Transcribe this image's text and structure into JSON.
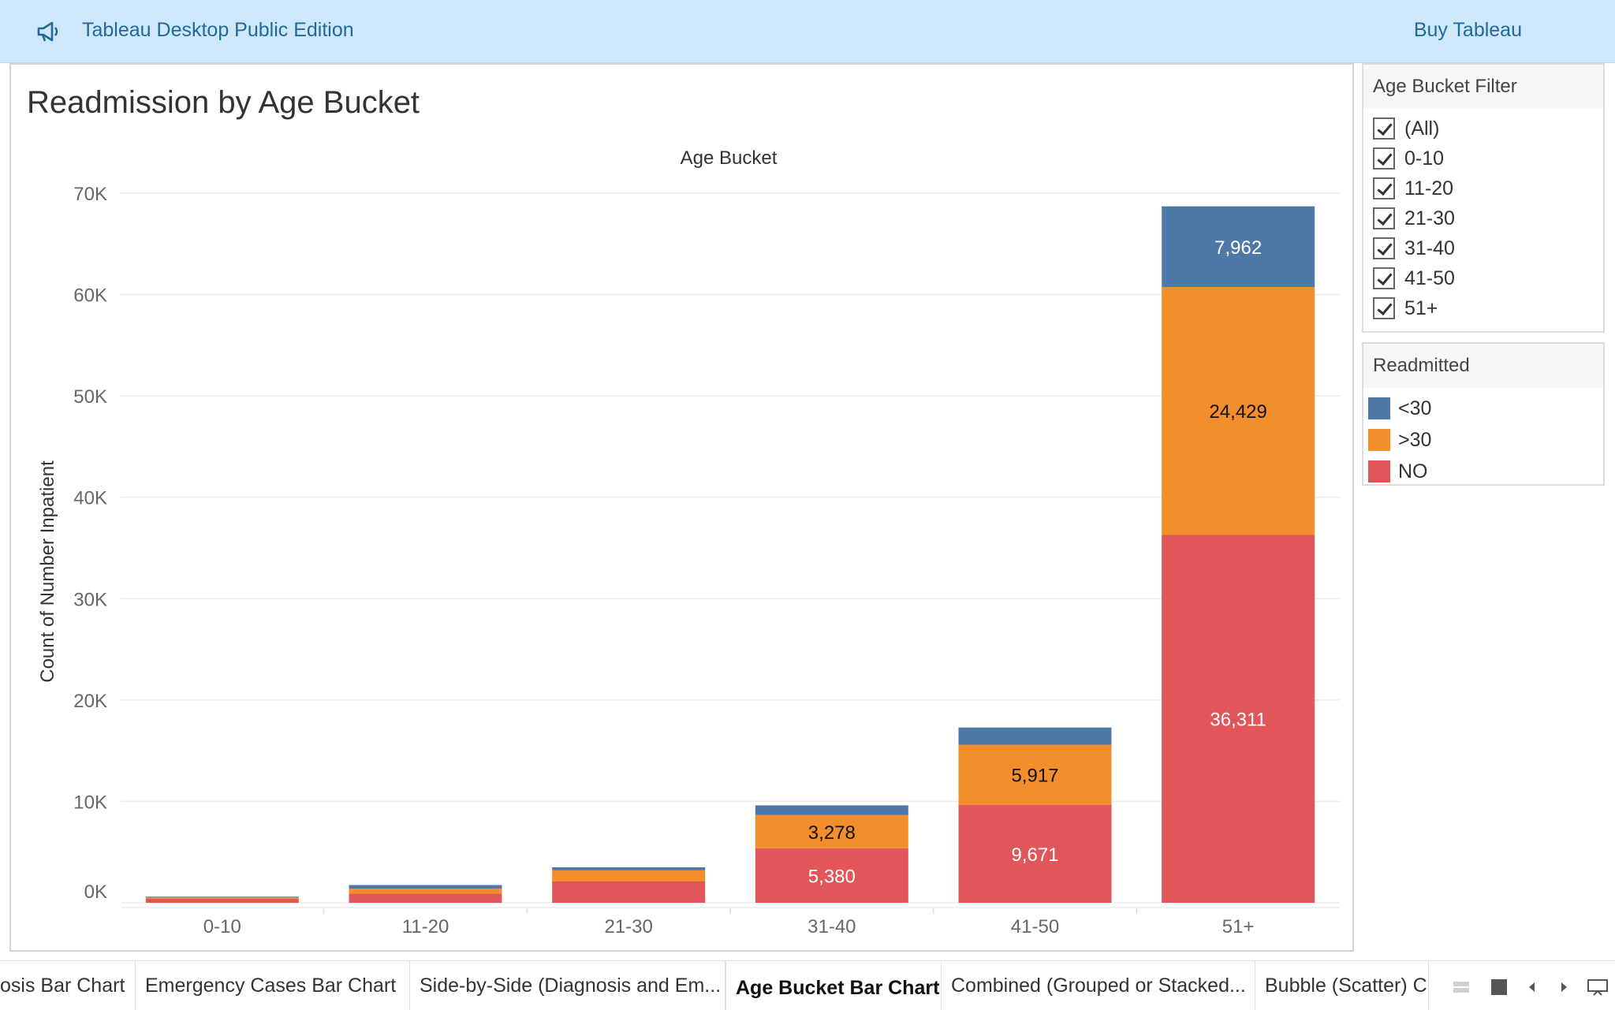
{
  "app": {
    "title": "Tableau Desktop Public Edition",
    "buy_label": "Buy Tableau",
    "megaphone_icon": "megaphone-icon"
  },
  "sheet": {
    "title": "Readmission by Age Bucket"
  },
  "filter": {
    "title": "Age Bucket Filter",
    "items": [
      "(All)",
      "0-10",
      "11-20",
      "21-30",
      "31-40",
      "41-50",
      "51+"
    ],
    "checked": [
      true,
      true,
      true,
      true,
      true,
      true,
      true
    ]
  },
  "legend": {
    "title": "Readmitted",
    "items": [
      {
        "label": "<30",
        "color": "#4e79a7"
      },
      {
        "label": ">30",
        "color": "#f28e2b"
      },
      {
        "label": "NO",
        "color": "#e15759"
      }
    ]
  },
  "tabs": [
    "osis Bar Chart",
    "Emergency Cases Bar Chart",
    "Side-by-Side (Diagnosis and Em...",
    "Age Bucket Bar Chart",
    "Combined (Grouped or Stacked...",
    "Bubble (Scatter) C"
  ],
  "active_tab": 3,
  "chart_data": {
    "type": "bar",
    "stacked": true,
    "title": "Age Bucket",
    "xlabel": "",
    "ylabel": "Count of Number Inpatient",
    "categories": [
      "0-10",
      "11-20",
      "21-30",
      "31-40",
      "41-50",
      "51+"
    ],
    "ylim": [
      0,
      70000
    ],
    "yticks": [
      0,
      10000,
      20000,
      30000,
      40000,
      50000,
      60000,
      70000
    ],
    "ytick_labels": [
      "0K",
      "10K",
      "20K",
      "30K",
      "40K",
      "50K",
      "60K",
      "70K"
    ],
    "grid": true,
    "series": [
      {
        "name": "NO",
        "color": "#e15759",
        "values": [
          400,
          900,
          2100,
          5380,
          9671,
          36311
        ],
        "labels": [
          "",
          "",
          "",
          "5,380",
          "9,671",
          "36,311"
        ],
        "label_color": "#ffffff"
      },
      {
        "name": ">30",
        "color": "#f28e2b",
        "values": [
          150,
          500,
          1100,
          3278,
          5917,
          24429
        ],
        "labels": [
          "",
          "",
          "",
          "3,278",
          "5,917",
          "24,429"
        ],
        "label_color": "#111111"
      },
      {
        "name": "<30",
        "color": "#4e79a7",
        "values": [
          50,
          350,
          300,
          950,
          1700,
          7962
        ],
        "labels": [
          "",
          "",
          "",
          "",
          "",
          "7,962"
        ],
        "label_color": "#ffffff"
      }
    ]
  }
}
